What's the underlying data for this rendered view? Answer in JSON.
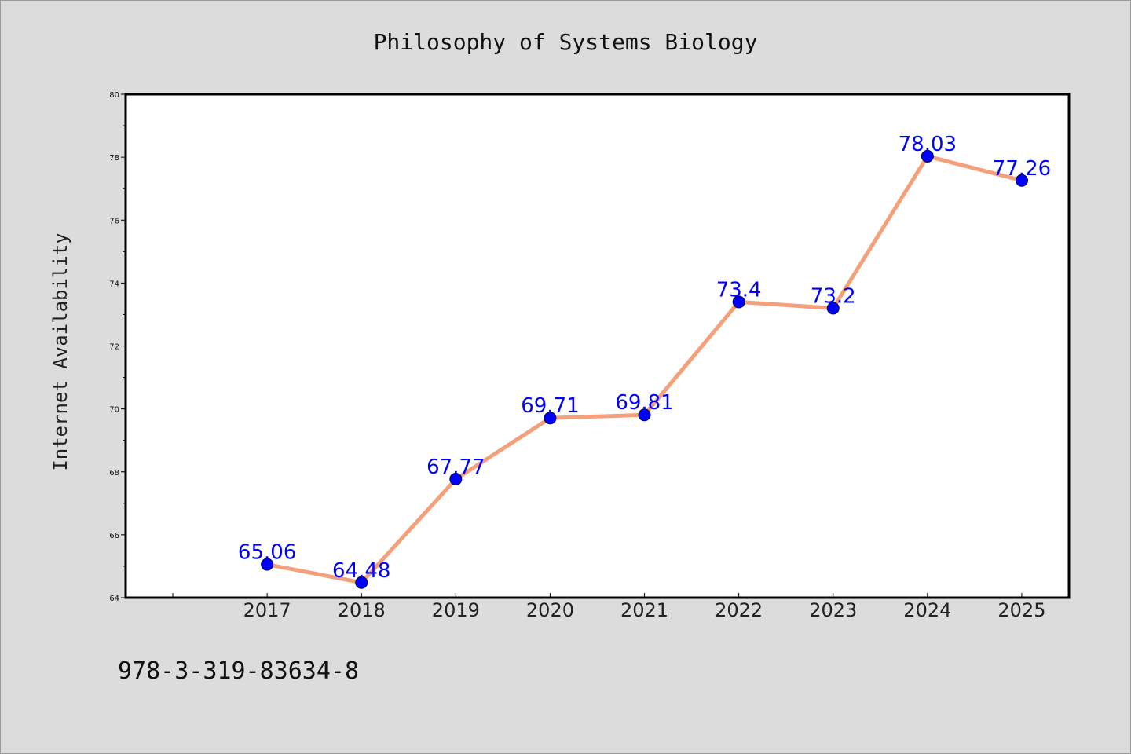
{
  "chart_data": {
    "type": "line",
    "title": "Philosophy of Systems Biology",
    "ylabel": "Internet Availability",
    "xlabel": "",
    "categories": [
      "2017",
      "2018",
      "2019",
      "2020",
      "2021",
      "2022",
      "2023",
      "2024",
      "2025"
    ],
    "x_range": [
      2015.5,
      2025.5
    ],
    "series": [
      {
        "values": [
          65.06,
          64.48,
          67.77,
          69.71,
          69.81,
          73.4,
          73.2,
          78.03,
          77.26
        ],
        "labels": [
          "65.06",
          "64.48",
          "67.77",
          "69.71",
          "69.81",
          "73.4",
          "73.2",
          "78.03",
          "77.26"
        ],
        "line_color": "#f4a07a",
        "marker_color": "#0000ff"
      }
    ],
    "ylim": [
      64,
      80
    ],
    "yticks": [
      "64",
      "66",
      "68",
      "70",
      "72",
      "74",
      "76",
      "78",
      "80"
    ],
    "grid": false,
    "legend": "none",
    "footer": "978-3-319-83634-8"
  },
  "colors": {
    "background": "#dcdcdc",
    "plot_bg": "#ffffff",
    "line": "#f4a07a",
    "marker": "#0000ff",
    "label": "#0000ff"
  }
}
